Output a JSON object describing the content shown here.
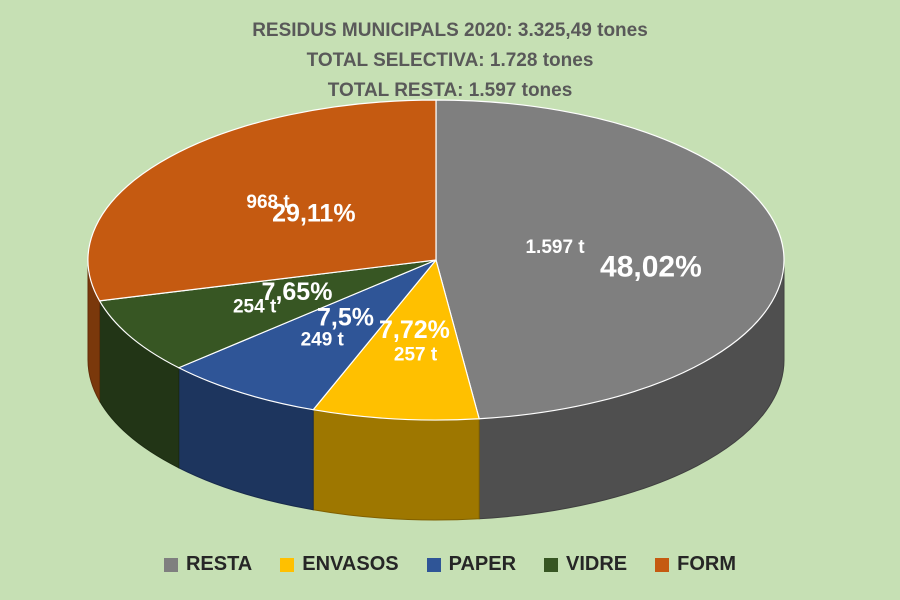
{
  "titles": [
    "RESIDUS MUNICIPALS 2020: 3.325,49 tones",
    "TOTAL SELECTIVA: 1.728 tones",
    "TOTAL RESTA: 1.597 tones"
  ],
  "chart_data": {
    "type": "pie",
    "style": "3d",
    "slices": [
      {
        "name": "RESTA",
        "tons_label": "1.597 t",
        "pct_label": "48,02%",
        "percent": 48.02,
        "color": "#7f7f7f"
      },
      {
        "name": "ENVASOS",
        "tons_label": "257 t",
        "pct_label": "7,72%",
        "percent": 7.72,
        "color": "#ffc000"
      },
      {
        "name": "PAPER",
        "tons_label": "249 t",
        "pct_label": "7,5%",
        "percent": 7.5,
        "color": "#2f5597"
      },
      {
        "name": "VIDRE",
        "tons_label": "254 t",
        "pct_label": "7,65%",
        "percent": 7.65,
        "color": "#375623"
      },
      {
        "name": "FORM",
        "tons_label": "968 t",
        "pct_label": "29,11%",
        "percent": 29.11,
        "color": "#c55a11"
      }
    ],
    "legend_position": "bottom"
  }
}
